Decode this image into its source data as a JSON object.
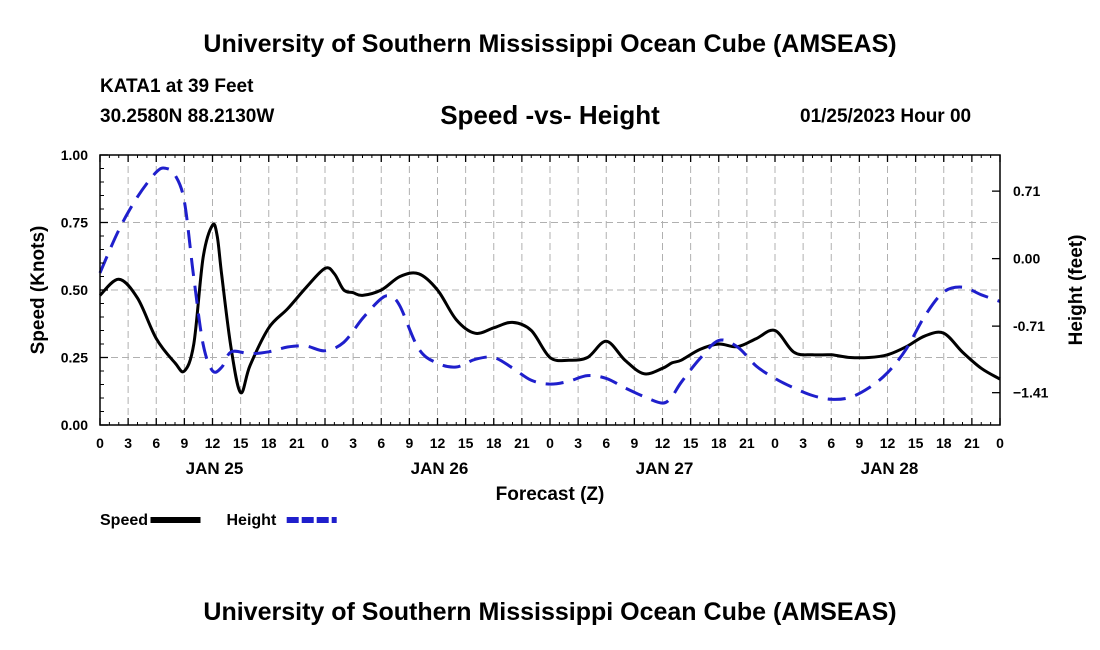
{
  "header": {
    "title": "University of Southern Mississippi Ocean Cube (AMSEAS)",
    "station": "KATA1 at 39 Feet",
    "coords": "30.2580N  88.2130W",
    "datetime": "01/25/2023 Hour 00",
    "footer_title": "University of Southern Mississippi Ocean Cube (AMSEAS)"
  },
  "chart_data": {
    "type": "line",
    "title": "Speed -vs- Height",
    "xlabel": "Forecast (Z)",
    "ylabel": "Speed (Knots)",
    "y2label": "Height (feet)",
    "xlim": [
      0,
      96
    ],
    "ylim": [
      0,
      1
    ],
    "y2lim": [
      -1.75,
      1.09
    ],
    "grid": true,
    "x_tick_values": [
      0,
      3,
      6,
      9,
      12,
      15,
      18,
      21,
      24,
      27,
      30,
      33,
      36,
      39,
      42,
      45,
      48,
      51,
      54,
      57,
      60,
      63,
      66,
      69,
      72,
      75,
      78,
      81,
      84,
      87,
      90,
      93,
      96
    ],
    "x_tick_labels": [
      "0",
      "3",
      "6",
      "9",
      "12",
      "15",
      "18",
      "21",
      "0",
      "3",
      "6",
      "9",
      "12",
      "15",
      "18",
      "21",
      "0",
      "3",
      "6",
      "9",
      "12",
      "15",
      "18",
      "21",
      "0",
      "3",
      "6",
      "9",
      "12",
      "15",
      "18",
      "21",
      "0"
    ],
    "day_labels": [
      {
        "x": 12,
        "label": "JAN 25"
      },
      {
        "x": 36,
        "label": "JAN 26"
      },
      {
        "x": 60,
        "label": "JAN 27"
      },
      {
        "x": 84,
        "label": "JAN 28"
      }
    ],
    "y_ticks": [
      0.0,
      0.25,
      0.5,
      0.75,
      1.0
    ],
    "y_tick_labels": [
      "0.00",
      "0.25",
      "0.50",
      "0.75",
      "1.00"
    ],
    "y2_ticks": [
      0.71,
      0.0,
      -0.71,
      -1.41
    ],
    "y2_tick_labels": [
      "0.71",
      "0.00",
      "-0.71",
      "−1.41"
    ],
    "series": [
      {
        "name": "Speed",
        "axis": "left",
        "color": "#000000",
        "dash": false,
        "x": [
          0,
          2,
          4,
          6,
          8,
          9,
          10,
          11,
          12,
          12.5,
          13,
          14,
          15,
          16,
          18,
          20,
          22,
          24,
          25,
          26,
          27,
          28,
          30,
          32,
          34,
          36,
          38,
          40,
          42,
          44,
          46,
          48,
          50,
          52,
          54,
          56,
          58,
          60,
          61,
          62,
          64,
          66,
          68,
          70,
          72,
          74,
          76,
          78,
          80,
          82,
          84,
          86,
          88,
          90,
          92,
          94,
          96
        ],
        "values": [
          0.48,
          0.54,
          0.47,
          0.32,
          0.23,
          0.2,
          0.3,
          0.62,
          0.74,
          0.7,
          0.55,
          0.28,
          0.12,
          0.22,
          0.36,
          0.43,
          0.51,
          0.58,
          0.56,
          0.5,
          0.49,
          0.48,
          0.5,
          0.55,
          0.56,
          0.5,
          0.39,
          0.34,
          0.36,
          0.38,
          0.35,
          0.25,
          0.24,
          0.25,
          0.31,
          0.24,
          0.19,
          0.21,
          0.23,
          0.24,
          0.28,
          0.3,
          0.29,
          0.32,
          0.35,
          0.27,
          0.26,
          0.26,
          0.25,
          0.25,
          0.26,
          0.29,
          0.33,
          0.34,
          0.27,
          0.21,
          0.17
        ]
      },
      {
        "name": "Height",
        "axis": "right",
        "color": "#1f1fcc",
        "dash": true,
        "x": [
          0,
          2,
          4,
          6,
          7,
          8,
          9,
          10,
          11,
          12,
          13,
          14,
          16,
          18,
          20,
          22,
          24,
          26,
          28,
          30,
          31,
          32,
          34,
          36,
          38,
          40,
          42,
          44,
          46,
          48,
          50,
          52,
          54,
          56,
          58,
          60,
          61,
          62,
          64,
          66,
          68,
          70,
          72,
          74,
          76,
          78,
          80,
          82,
          84,
          86,
          88,
          90,
          92,
          94,
          96
        ],
        "values": [
          -0.15,
          0.3,
          0.65,
          0.91,
          0.95,
          0.88,
          0.6,
          -0.2,
          -0.9,
          -1.18,
          -1.14,
          -0.98,
          -1.0,
          -0.98,
          -0.93,
          -0.92,
          -0.97,
          -0.88,
          -0.63,
          -0.42,
          -0.4,
          -0.5,
          -0.95,
          -1.1,
          -1.14,
          -1.06,
          -1.04,
          -1.15,
          -1.28,
          -1.32,
          -1.29,
          -1.23,
          -1.26,
          -1.36,
          -1.45,
          -1.52,
          -1.45,
          -1.3,
          -1.05,
          -0.86,
          -0.93,
          -1.13,
          -1.26,
          -1.36,
          -1.44,
          -1.48,
          -1.46,
          -1.36,
          -1.2,
          -0.95,
          -0.6,
          -0.35,
          -0.3,
          -0.38,
          -0.45
        ]
      }
    ],
    "legend": {
      "placement": "bottom-left",
      "items": [
        "Speed",
        "Height"
      ]
    }
  }
}
